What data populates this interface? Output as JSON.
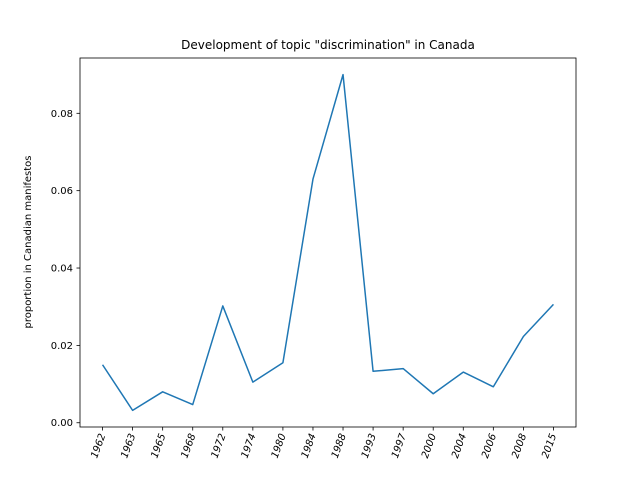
{
  "chart_data": {
    "type": "line",
    "title": "Development of topic \"discrimination\" in Canada",
    "xlabel": "",
    "ylabel": "proportion in Canadian manifestos",
    "categories": [
      "1962",
      "1963",
      "1965",
      "1968",
      "1972",
      "1974",
      "1980",
      "1984",
      "1988",
      "1993",
      "1997",
      "2000",
      "2004",
      "2006",
      "2008",
      "2015"
    ],
    "series": [
      {
        "values": [
          0.015,
          0.0032,
          0.008,
          0.0047,
          0.0302,
          0.0105,
          0.0155,
          0.063,
          0.09,
          0.0133,
          0.014,
          0.0075,
          0.0131,
          0.0093,
          0.0223,
          0.0306
        ],
        "color": "#1f77b4"
      }
    ],
    "ylim": [
      -0.0011,
      0.0943
    ],
    "yticks": [
      "0.00",
      "0.02",
      "0.04",
      "0.06",
      "0.08"
    ],
    "grid": false,
    "legend": "none"
  }
}
